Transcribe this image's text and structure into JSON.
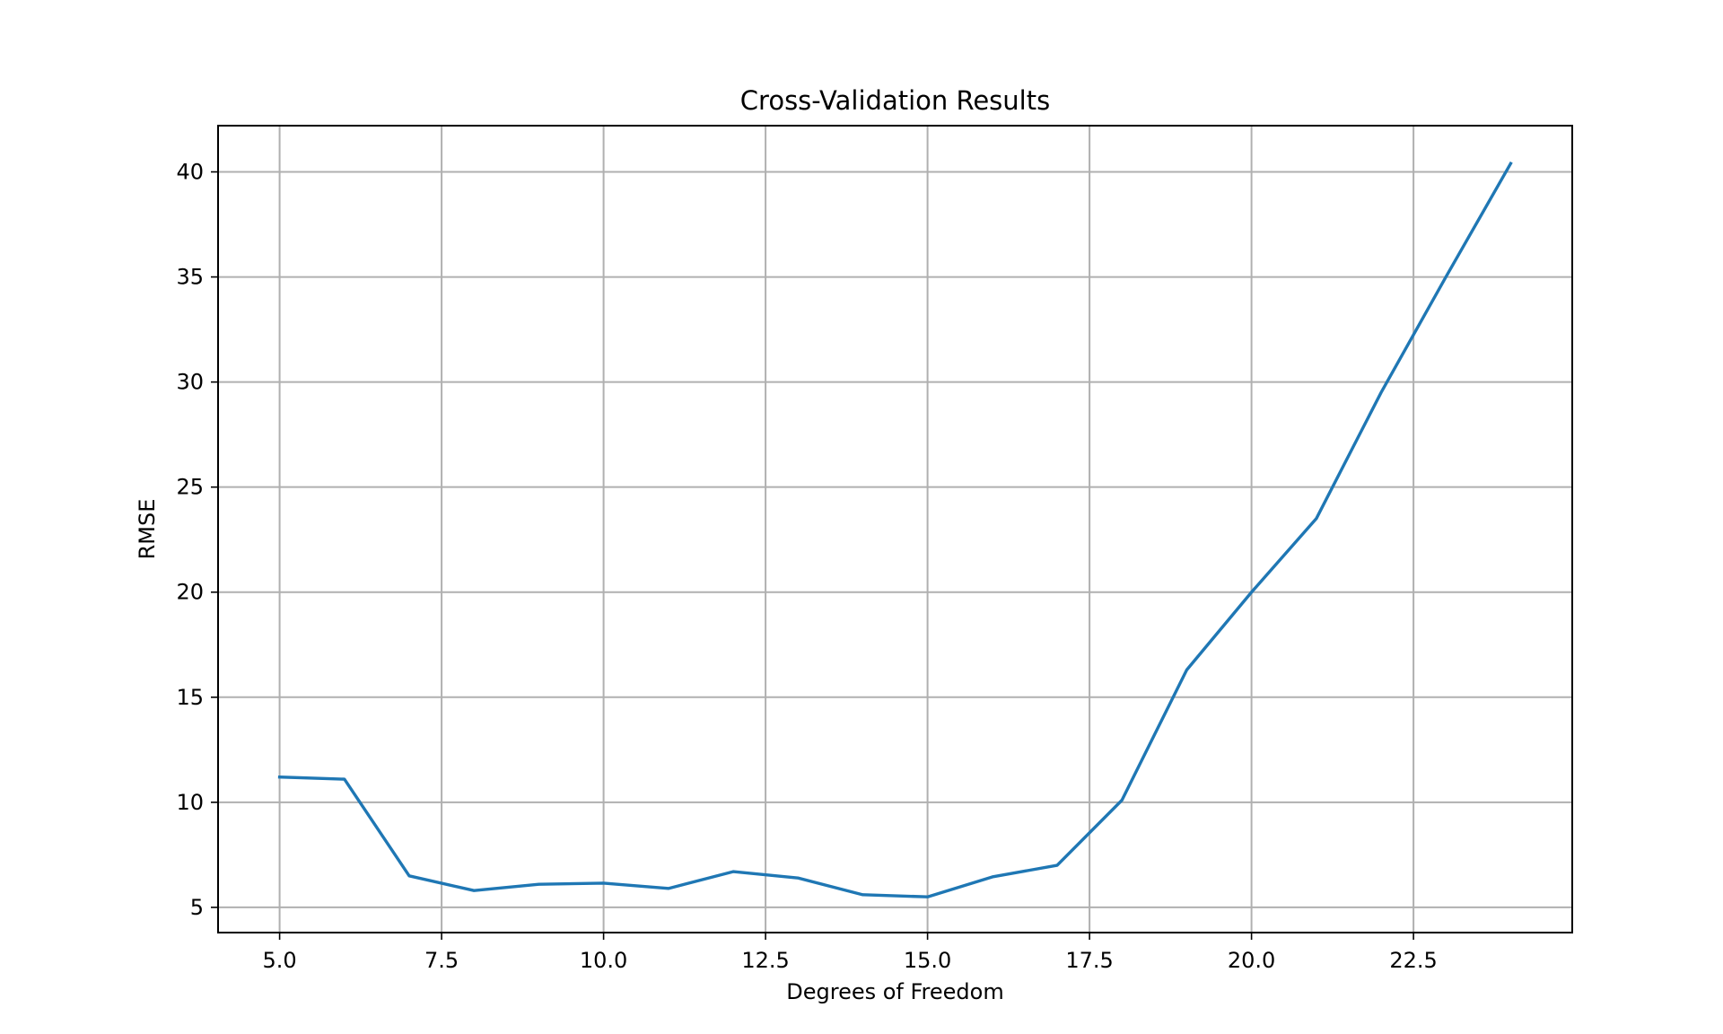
{
  "chart_data": {
    "type": "line",
    "title": "Cross-Validation Results",
    "xlabel": "Degrees of Freedom",
    "ylabel": "RMSE",
    "xlim": [
      4.05,
      24.95
    ],
    "ylim": [
      3.8,
      42.2
    ],
    "xticks": [
      5.0,
      7.5,
      10.0,
      12.5,
      15.0,
      17.5,
      20.0,
      22.5
    ],
    "xtick_labels": [
      "5.0",
      "7.5",
      "10.0",
      "12.5",
      "15.0",
      "17.5",
      "20.0",
      "22.5"
    ],
    "yticks": [
      5,
      10,
      15,
      20,
      25,
      30,
      35,
      40
    ],
    "ytick_labels": [
      "5",
      "10",
      "15",
      "20",
      "25",
      "30",
      "35",
      "40"
    ],
    "grid": true,
    "colors": {
      "line": "#1f77b4"
    },
    "series": [
      {
        "x": [
          5,
          6,
          7,
          8,
          9,
          10,
          11,
          12,
          13,
          14,
          15,
          16,
          17,
          18,
          19,
          20,
          21,
          22,
          23,
          24
        ],
        "values": [
          11.2,
          11.1,
          6.5,
          5.8,
          6.1,
          6.15,
          5.9,
          6.7,
          6.4,
          5.6,
          5.5,
          6.45,
          7.0,
          10.1,
          16.3,
          20.0,
          23.5,
          29.5,
          35.0,
          40.4
        ]
      }
    ]
  }
}
